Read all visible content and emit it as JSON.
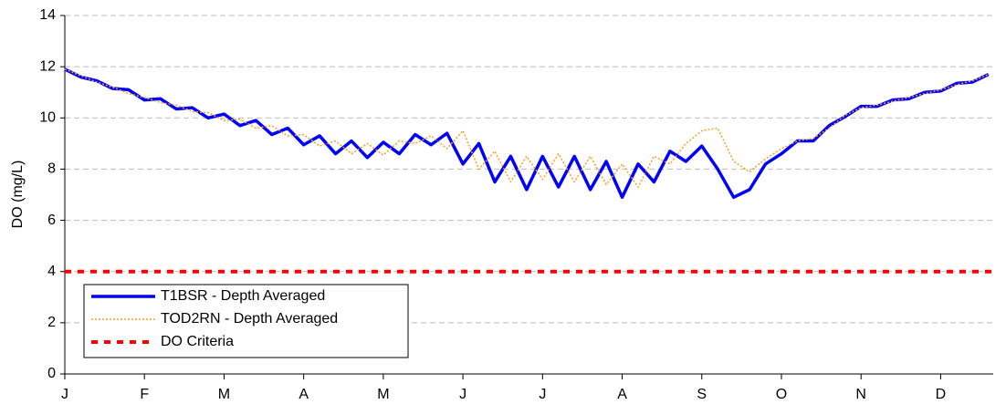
{
  "chart_data": {
    "type": "line",
    "ylabel": "DO (mg/L)",
    "x": [
      0,
      0.2,
      0.4,
      0.6,
      0.8,
      1.0,
      1.2,
      1.4,
      1.6,
      1.8,
      2.0,
      2.2,
      2.4,
      2.6,
      2.8,
      3.0,
      3.2,
      3.4,
      3.6,
      3.8,
      4.0,
      4.2,
      4.4,
      4.6,
      4.8,
      5.0,
      5.2,
      5.4,
      5.6,
      5.8,
      6.0,
      6.2,
      6.4,
      6.6,
      6.8,
      7.0,
      7.2,
      7.4,
      7.6,
      7.8,
      8.0,
      8.2,
      8.4,
      8.6,
      8.8,
      9.0,
      9.2,
      9.4,
      9.6,
      9.8,
      10.0,
      10.2,
      10.4,
      10.6,
      10.8,
      11.0,
      11.2,
      11.4,
      11.6
    ],
    "series": [
      {
        "name": "T1BSR - Depth Averaged",
        "color": "#0000ff",
        "style": "solid",
        "values": [
          11.9,
          11.6,
          11.45,
          11.15,
          11.1,
          10.7,
          10.75,
          10.35,
          10.4,
          10.0,
          10.15,
          9.7,
          9.9,
          9.35,
          9.6,
          8.95,
          9.3,
          8.6,
          9.1,
          8.45,
          9.05,
          8.6,
          9.35,
          8.95,
          9.4,
          8.2,
          9.0,
          7.5,
          8.5,
          7.2,
          8.5,
          7.3,
          8.5,
          7.2,
          8.3,
          6.9,
          8.2,
          7.5,
          8.7,
          8.3,
          8.9,
          8.0,
          6.9,
          7.2,
          8.2,
          8.6,
          9.1,
          9.1,
          9.7,
          10.05,
          10.45,
          10.45,
          10.7,
          10.75,
          11.0,
          11.05,
          11.35,
          11.4,
          11.7
        ]
      },
      {
        "name": "TOD2RN - Depth Averaged",
        "color": "#f4a020",
        "style": "dotted",
        "values": [
          11.9,
          11.65,
          11.4,
          11.2,
          10.95,
          10.8,
          10.6,
          10.5,
          10.25,
          10.2,
          9.9,
          9.95,
          9.6,
          9.7,
          9.3,
          9.35,
          8.9,
          9.1,
          8.6,
          9.0,
          8.55,
          9.1,
          9.0,
          9.3,
          8.8,
          9.5,
          8.0,
          8.7,
          7.5,
          8.5,
          7.6,
          8.6,
          7.5,
          8.5,
          7.4,
          8.2,
          7.3,
          8.5,
          8.2,
          9.0,
          9.5,
          9.6,
          8.3,
          7.9,
          8.4,
          8.8,
          9.1,
          9.2,
          9.6,
          10.1,
          10.4,
          10.5,
          10.65,
          10.8,
          10.95,
          11.1,
          11.3,
          11.45,
          11.7
        ]
      },
      {
        "name": "DO Criteria",
        "color": "#ff0000",
        "style": "dashed",
        "x": [
          0,
          11.66
        ],
        "values": [
          4,
          4
        ]
      }
    ],
    "xlim": [
      0,
      11.66
    ],
    "xticks": [
      {
        "value": 0,
        "label": "J"
      },
      {
        "value": 1,
        "label": "F"
      },
      {
        "value": 2,
        "label": "M"
      },
      {
        "value": 3,
        "label": "A"
      },
      {
        "value": 4,
        "label": "M"
      },
      {
        "value": 5,
        "label": "J"
      },
      {
        "value": 6,
        "label": "J"
      },
      {
        "value": 7,
        "label": "A"
      },
      {
        "value": 8,
        "label": "S"
      },
      {
        "value": 9,
        "label": "O"
      },
      {
        "value": 10,
        "label": "N"
      },
      {
        "value": 11,
        "label": "D"
      }
    ],
    "ylim": [
      0,
      14
    ],
    "yticks": [
      0,
      2,
      4,
      6,
      8,
      10,
      12,
      14
    ],
    "grid": true,
    "legend": "lower-left"
  }
}
